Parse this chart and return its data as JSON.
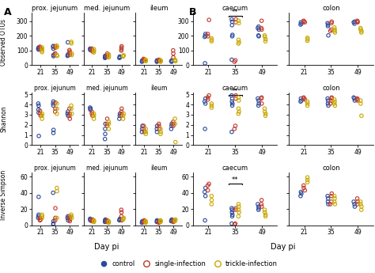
{
  "colors": {
    "control": "#2B4B9B",
    "single": "#C0392B",
    "trickle": "#C8A800"
  },
  "A_OTU_prox": {
    "21": {
      "control": [
        115,
        120,
        110,
        105
      ],
      "single": [
        125,
        118,
        112
      ],
      "trickle": [
        120,
        108,
        98,
        88
      ]
    },
    "35": {
      "control": [
        125,
        130,
        112,
        60,
        68
      ],
      "single": [
        128,
        118,
        80,
        72
      ],
      "trickle": [
        132,
        122,
        68,
        62
      ]
    },
    "49": {
      "control": [
        62,
        72,
        66,
        155
      ],
      "single": [
        102,
        92,
        82,
        70
      ],
      "trickle": [
        158,
        148,
        78,
        68
      ]
    }
  },
  "A_OTU_med": {
    "21": {
      "control": [
        102,
        108,
        112
      ],
      "single": [
        112,
        102,
        92
      ],
      "trickle": [
        108,
        96,
        86
      ]
    },
    "35": {
      "control": [
        48,
        58,
        62,
        52
      ],
      "single": [
        78,
        66,
        58
      ],
      "trickle": [
        72,
        62,
        52
      ]
    },
    "49": {
      "control": [
        48,
        58,
        52
      ],
      "single": [
        98,
        108,
        118,
        128
      ],
      "trickle": [
        58,
        62,
        66
      ]
    }
  },
  "A_OTU_ile": {
    "21": {
      "control": [
        28,
        32,
        22
      ],
      "single": [
        42,
        36,
        32
      ],
      "trickle": [
        36,
        30,
        26
      ]
    },
    "35": {
      "control": [
        22,
        26,
        32
      ],
      "single": [
        32,
        36,
        28
      ],
      "trickle": [
        32,
        26,
        22
      ]
    },
    "49": {
      "control": [
        26,
        22,
        32
      ],
      "single": [
        100,
        78,
        52
      ],
      "trickle": [
        36,
        30,
        26
      ]
    }
  },
  "A_Shannon_prox": {
    "21": {
      "control": [
        3.5,
        3.9,
        4.1,
        3.2,
        0.9
      ],
      "single": [
        3.4,
        3.1,
        2.9
      ],
      "trickle": [
        2.9,
        3.1,
        2.6
      ]
    },
    "35": {
      "control": [
        4.1,
        4.3,
        3.9,
        1.5,
        1.2
      ],
      "single": [
        4.2,
        3.6,
        3.3
      ],
      "trickle": [
        4.1,
        3.6,
        3.1
      ]
    },
    "49": {
      "control": [
        3.1,
        3.3,
        2.9
      ],
      "single": [
        3.6,
        3.1,
        2.9,
        2.6
      ],
      "trickle": [
        3.9,
        3.6,
        3.1
      ]
    }
  },
  "A_Shannon_med": {
    "21": {
      "control": [
        3.5,
        3.6,
        3.7
      ],
      "single": [
        3.3,
        3.1,
        2.9
      ],
      "trickle": [
        3.1,
        2.9,
        2.6
      ]
    },
    "35": {
      "control": [
        0.6,
        1.1,
        1.6,
        2.1
      ],
      "single": [
        2.6,
        2.1,
        1.9
      ],
      "trickle": [
        2.3,
        2.1,
        1.6
      ]
    },
    "49": {
      "control": [
        2.6,
        2.9,
        3.1
      ],
      "single": [
        2.9,
        3.1,
        3.3,
        3.6
      ],
      "trickle": [
        2.6,
        2.9,
        3.1
      ]
    }
  },
  "A_Shannon_ile": {
    "21": {
      "control": [
        1.6,
        1.9,
        1.3
      ],
      "single": [
        1.9,
        1.6,
        1.3
      ],
      "trickle": [
        1.6,
        1.3,
        1.1
      ]
    },
    "35": {
      "control": [
        1.6,
        1.9,
        1.3
      ],
      "single": [
        1.6,
        1.9,
        2.1
      ],
      "trickle": [
        1.6,
        1.3,
        1.1
      ]
    },
    "49": {
      "control": [
        1.6,
        1.9,
        2.1
      ],
      "single": [
        2.3,
        2.1,
        1.9
      ],
      "trickle": [
        2.6,
        2.1,
        0.3
      ]
    }
  },
  "A_Inv_prox": {
    "21": {
      "control": [
        11,
        13,
        9,
        35
      ],
      "single": [
        6,
        9,
        7
      ],
      "trickle": [
        13,
        11,
        9
      ]
    },
    "35": {
      "control": [
        40,
        2,
        1,
        5
      ],
      "single": [
        21,
        9,
        6
      ],
      "trickle": [
        46,
        42,
        9
      ]
    },
    "49": {
      "control": [
        9,
        11,
        6
      ],
      "single": [
        11,
        9,
        7,
        5
      ],
      "trickle": [
        13,
        11,
        9
      ]
    }
  },
  "A_Inv_med": {
    "21": {
      "control": [
        6,
        7,
        8
      ],
      "single": [
        5,
        6,
        7
      ],
      "trickle": [
        6,
        5,
        4
      ]
    },
    "35": {
      "control": [
        4,
        5,
        6,
        7
      ],
      "single": [
        6,
        5,
        4
      ],
      "trickle": [
        5,
        4,
        3
      ]
    },
    "49": {
      "control": [
        6,
        7,
        8
      ],
      "single": [
        19,
        16,
        11,
        6
      ],
      "trickle": [
        7,
        8,
        9
      ]
    }
  },
  "A_Inv_ile": {
    "21": {
      "control": [
        4,
        5,
        3
      ],
      "single": [
        4,
        5,
        6
      ],
      "trickle": [
        5,
        4,
        3
      ]
    },
    "35": {
      "control": [
        4,
        5,
        6
      ],
      "single": [
        5,
        4,
        3
      ],
      "trickle": [
        4,
        5,
        6
      ]
    },
    "49": {
      "control": [
        5,
        6,
        7
      ],
      "single": [
        6,
        5,
        4
      ],
      "trickle": [
        5,
        6,
        7
      ]
    }
  },
  "B_OTU_caecum": {
    "21": {
      "control": [
        12,
        200,
        192,
        212
      ],
      "single": [
        212,
        196,
        308
      ],
      "trickle": [
        182,
        172,
        162
      ]
    },
    "35": {
      "control": [
        312,
        296,
        272,
        206,
        196,
        36
      ],
      "single": [
        312,
        292,
        32,
        22
      ],
      "trickle": [
        302,
        286,
        172,
        156,
        146
      ]
    },
    "49": {
      "control": [
        252,
        262,
        242,
        202,
        196
      ],
      "single": [
        252,
        242,
        302
      ],
      "trickle": [
        202,
        192,
        176,
        162
      ]
    }
  },
  "B_OTU_colon": {
    "21": {
      "control": [
        292,
        282,
        276
      ],
      "single": [
        302,
        296,
        292
      ],
      "trickle": [
        186,
        176,
        166
      ]
    },
    "35": {
      "control": [
        286,
        276,
        266,
        202
      ],
      "single": [
        296,
        286,
        242,
        232
      ],
      "trickle": [
        256,
        242,
        232,
        222
      ]
    },
    "49": {
      "control": [
        292,
        282,
        296
      ],
      "single": [
        302,
        292,
        296
      ],
      "trickle": [
        252,
        242,
        232,
        222
      ]
    }
  },
  "B_Shannon_caecum": {
    "21": {
      "control": [
        1.6,
        4.6,
        4.3,
        4.1
      ],
      "single": [
        4.7,
        4.5,
        4.9
      ],
      "trickle": [
        4.1,
        3.9,
        3.7
      ]
    },
    "35": {
      "control": [
        4.9,
        4.6,
        4.3,
        4.1,
        3.9,
        1.3
      ],
      "single": [
        4.9,
        4.6,
        1.9,
        1.6
      ],
      "trickle": [
        4.7,
        4.4,
        3.6,
        3.3,
        3.1
      ]
    },
    "49": {
      "control": [
        4.6,
        4.4,
        4.1,
        3.9
      ],
      "single": [
        4.6,
        4.1,
        4.7
      ],
      "trickle": [
        3.6,
        3.3,
        3.1,
        2.9
      ]
    }
  },
  "B_Shannon_colon": {
    "21": {
      "control": [
        4.6,
        4.4,
        4.3
      ],
      "single": [
        4.7,
        4.6,
        4.5
      ],
      "trickle": [
        4.3,
        4.1,
        3.9
      ]
    },
    "35": {
      "control": [
        4.6,
        4.4,
        4.1,
        3.9
      ],
      "single": [
        4.7,
        4.6,
        4.4,
        4.1
      ],
      "trickle": [
        4.5,
        4.3,
        4.1,
        3.9
      ]
    },
    "49": {
      "control": [
        4.7,
        4.6,
        4.4
      ],
      "single": [
        4.6,
        4.5,
        4.4
      ],
      "trickle": [
        4.4,
        4.1,
        2.9
      ]
    }
  },
  "B_Inv_caecum": {
    "21": {
      "control": [
        6,
        46,
        41,
        36
      ],
      "single": [
        49,
        43,
        51
      ],
      "trickle": [
        36,
        31,
        26
      ]
    },
    "35": {
      "control": [
        21,
        19,
        16,
        13,
        11,
        2
      ],
      "single": [
        21,
        19,
        2,
        1
      ],
      "trickle": [
        26,
        23,
        19,
        16,
        11
      ]
    },
    "49": {
      "control": [
        26,
        23,
        21,
        19
      ],
      "single": [
        26,
        23,
        31
      ],
      "trickle": [
        19,
        16,
        13,
        11
      ]
    }
  },
  "B_Inv_colon": {
    "21": {
      "control": [
        41,
        39,
        36
      ],
      "single": [
        49,
        46,
        43
      ],
      "trickle": [
        59,
        56,
        53
      ]
    },
    "35": {
      "control": [
        36,
        33,
        29,
        26
      ],
      "single": [
        39,
        36,
        29,
        26
      ],
      "trickle": [
        36,
        33,
        29,
        26
      ]
    },
    "49": {
      "control": [
        29,
        26,
        23
      ],
      "single": [
        33,
        29,
        26
      ],
      "trickle": [
        29,
        26,
        23,
        19
      ]
    }
  }
}
